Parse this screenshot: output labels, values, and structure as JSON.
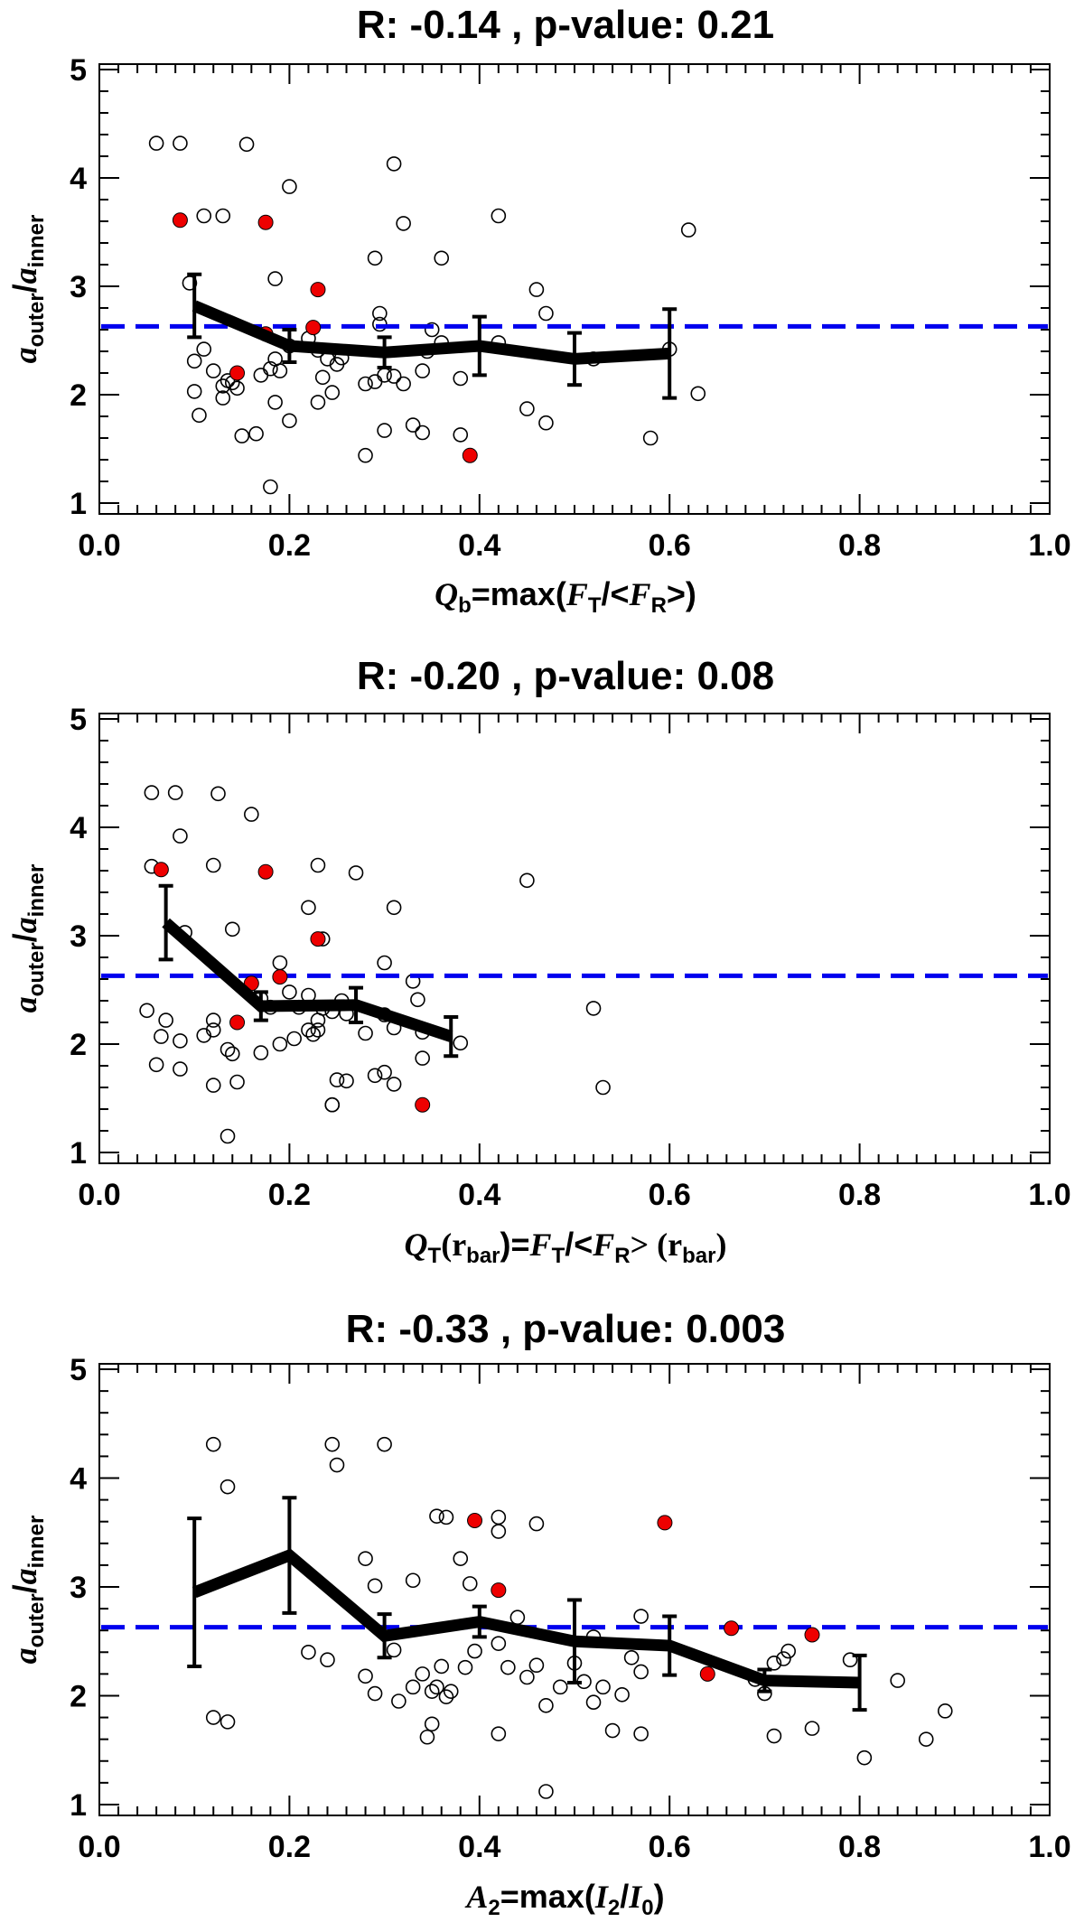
{
  "chart_data": [
    {
      "type": "scatter",
      "title": "R: -0.14 , p-value: 0.21",
      "xlabel": {
        "var": "Q",
        "sub": "b",
        "expr": "=max(",
        "num": "F",
        "num_sub": "T",
        "sep": "/<",
        "den": "F",
        "den_sub": "R",
        "close": ">)"
      },
      "ylabel": {
        "num": "a",
        "num_sub": "outer",
        "sep": "/",
        "den": "a",
        "den_sub": "inner"
      },
      "xlim": [
        0.0,
        1.0
      ],
      "ylim": [
        0.9,
        5.05
      ],
      "xticks": [
        "0.0",
        "0.2",
        "0.4",
        "0.6",
        "0.8",
        "1.0"
      ],
      "yticks": [
        "1",
        "2",
        "3",
        "4",
        "5"
      ],
      "reference_line": {
        "y": 2.63,
        "color": "#0000ee",
        "style": "dashed"
      },
      "colors": {
        "highlight": "#ee0000",
        "open": "#000000",
        "trend": "#000000"
      },
      "open_points": [
        [
          0.06,
          4.32
        ],
        [
          0.085,
          4.32
        ],
        [
          0.095,
          3.03
        ],
        [
          0.11,
          3.65
        ],
        [
          0.13,
          3.65
        ],
        [
          0.155,
          4.31
        ],
        [
          0.2,
          3.92
        ],
        [
          0.185,
          3.07
        ],
        [
          0.31,
          4.13
        ],
        [
          0.32,
          3.58
        ],
        [
          0.29,
          3.26
        ],
        [
          0.36,
          3.26
        ],
        [
          0.42,
          3.65
        ],
        [
          0.46,
          2.97
        ],
        [
          0.47,
          2.75
        ],
        [
          0.62,
          3.52
        ],
        [
          0.1,
          2.31
        ],
        [
          0.11,
          2.42
        ],
        [
          0.12,
          2.22
        ],
        [
          0.13,
          2.08
        ],
        [
          0.135,
          2.13
        ],
        [
          0.14,
          2.11
        ],
        [
          0.145,
          2.06
        ],
        [
          0.1,
          2.03
        ],
        [
          0.13,
          1.97
        ],
        [
          0.105,
          1.81
        ],
        [
          0.15,
          1.62
        ],
        [
          0.165,
          1.64
        ],
        [
          0.18,
          2.24
        ],
        [
          0.185,
          2.33
        ],
        [
          0.19,
          2.22
        ],
        [
          0.2,
          2.45
        ],
        [
          0.22,
          2.52
        ],
        [
          0.23,
          2.41
        ],
        [
          0.24,
          2.33
        ],
        [
          0.25,
          2.28
        ],
        [
          0.255,
          2.34
        ],
        [
          0.235,
          2.16
        ],
        [
          0.23,
          1.93
        ],
        [
          0.245,
          2.02
        ],
        [
          0.2,
          1.76
        ],
        [
          0.185,
          1.93
        ],
        [
          0.17,
          2.18
        ],
        [
          0.18,
          1.15
        ],
        [
          0.28,
          2.1
        ],
        [
          0.29,
          2.12
        ],
        [
          0.3,
          2.18
        ],
        [
          0.31,
          2.17
        ],
        [
          0.32,
          2.1
        ],
        [
          0.295,
          2.65
        ],
        [
          0.295,
          2.75
        ],
        [
          0.34,
          2.22
        ],
        [
          0.345,
          2.4
        ],
        [
          0.35,
          2.6
        ],
        [
          0.36,
          2.48
        ],
        [
          0.3,
          1.67
        ],
        [
          0.33,
          1.72
        ],
        [
          0.34,
          1.65
        ],
        [
          0.28,
          1.44
        ],
        [
          0.38,
          2.15
        ],
        [
          0.38,
          1.63
        ],
        [
          0.42,
          2.48
        ],
        [
          0.45,
          1.87
        ],
        [
          0.47,
          1.74
        ],
        [
          0.52,
          2.33
        ],
        [
          0.58,
          1.6
        ],
        [
          0.6,
          2.42
        ],
        [
          0.63,
          2.01
        ]
      ],
      "highlight_points": [
        [
          0.085,
          3.61
        ],
        [
          0.175,
          3.59
        ],
        [
          0.23,
          2.97
        ],
        [
          0.225,
          2.62
        ],
        [
          0.175,
          2.56
        ],
        [
          0.145,
          2.2
        ],
        [
          0.39,
          1.44
        ]
      ],
      "trend": {
        "x": [
          0.1,
          0.2,
          0.3,
          0.4,
          0.5,
          0.6
        ],
        "y": [
          2.82,
          2.45,
          2.39,
          2.45,
          2.33,
          2.38
        ],
        "err": [
          0.29,
          0.15,
          0.14,
          0.27,
          0.24,
          0.41
        ]
      }
    },
    {
      "type": "scatter",
      "title": "R: -0.20 , p-value: 0.08",
      "xlabel": {
        "var": "Q",
        "sub": "T",
        "arg": "(r",
        "arg_sub": "bar",
        "expr": ")=",
        "num": "F",
        "num_sub": "T",
        "sep": "/<",
        "den": "F",
        "den_sub": "R",
        "close": "> (r",
        "close_sub": "bar",
        "end": ")"
      },
      "ylabel": {
        "num": "a",
        "num_sub": "outer",
        "sep": "/",
        "den": "a",
        "den_sub": "inner"
      },
      "xlim": [
        0.0,
        1.0
      ],
      "ylim": [
        0.9,
        5.05
      ],
      "xticks": [
        "0.0",
        "0.2",
        "0.4",
        "0.6",
        "0.8",
        "1.0"
      ],
      "yticks": [
        "1",
        "2",
        "3",
        "4",
        "5"
      ],
      "reference_line": {
        "y": 2.63,
        "color": "#0000ee",
        "style": "dashed"
      },
      "colors": {
        "highlight": "#ee0000",
        "open": "#000000",
        "trend": "#000000"
      },
      "open_points": [
        [
          0.055,
          4.32
        ],
        [
          0.08,
          4.32
        ],
        [
          0.125,
          4.31
        ],
        [
          0.16,
          4.12
        ],
        [
          0.085,
          3.92
        ],
        [
          0.055,
          3.64
        ],
        [
          0.12,
          3.65
        ],
        [
          0.23,
          3.65
        ],
        [
          0.27,
          3.58
        ],
        [
          0.31,
          3.26
        ],
        [
          0.22,
          3.26
        ],
        [
          0.14,
          3.06
        ],
        [
          0.09,
          3.03
        ],
        [
          0.235,
          2.97
        ],
        [
          0.3,
          2.75
        ],
        [
          0.19,
          2.75
        ],
        [
          0.45,
          3.51
        ],
        [
          0.33,
          2.58
        ],
        [
          0.05,
          2.31
        ],
        [
          0.07,
          2.22
        ],
        [
          0.11,
          2.08
        ],
        [
          0.12,
          2.13
        ],
        [
          0.12,
          2.22
        ],
        [
          0.065,
          2.07
        ],
        [
          0.085,
          2.03
        ],
        [
          0.135,
          1.95
        ],
        [
          0.14,
          1.91
        ],
        [
          0.06,
          1.81
        ],
        [
          0.085,
          1.77
        ],
        [
          0.12,
          1.62
        ],
        [
          0.145,
          1.65
        ],
        [
          0.135,
          1.15
        ],
        [
          0.17,
          2.42
        ],
        [
          0.18,
          2.34
        ],
        [
          0.2,
          2.48
        ],
        [
          0.21,
          2.34
        ],
        [
          0.22,
          2.45
        ],
        [
          0.23,
          2.22
        ],
        [
          0.235,
          2.33
        ],
        [
          0.245,
          2.3
        ],
        [
          0.255,
          2.4
        ],
        [
          0.225,
          2.09
        ],
        [
          0.22,
          2.13
        ],
        [
          0.205,
          2.05
        ],
        [
          0.19,
          2.0
        ],
        [
          0.17,
          1.92
        ],
        [
          0.23,
          2.13
        ],
        [
          0.26,
          2.28
        ],
        [
          0.28,
          2.1
        ],
        [
          0.3,
          2.27
        ],
        [
          0.31,
          2.15
        ],
        [
          0.25,
          1.67
        ],
        [
          0.26,
          1.66
        ],
        [
          0.3,
          1.74
        ],
        [
          0.31,
          1.63
        ],
        [
          0.29,
          1.71
        ],
        [
          0.245,
          1.44
        ],
        [
          0.34,
          2.11
        ],
        [
          0.34,
          1.87
        ],
        [
          0.38,
          2.01
        ],
        [
          0.335,
          2.41
        ],
        [
          0.52,
          2.33
        ],
        [
          0.53,
          1.6
        ],
        [
          0.245,
          1.44
        ]
      ],
      "highlight_points": [
        [
          0.065,
          3.61
        ],
        [
          0.175,
          3.59
        ],
        [
          0.23,
          2.97
        ],
        [
          0.19,
          2.62
        ],
        [
          0.16,
          2.56
        ],
        [
          0.145,
          2.2
        ],
        [
          0.34,
          1.44
        ]
      ],
      "trend": {
        "x": [
          0.07,
          0.17,
          0.27,
          0.37
        ],
        "y": [
          3.12,
          2.35,
          2.36,
          2.07
        ],
        "err": [
          0.34,
          0.13,
          0.16,
          0.18
        ]
      }
    },
    {
      "type": "scatter",
      "title": "R: -0.33 , p-value: 0.003",
      "xlabel": {
        "var": "A",
        "sub": "2",
        "expr": "=max(",
        "num": "I",
        "num_sub": "2",
        "sep": "/",
        "den": "I",
        "den_sub": "0",
        "close": ")"
      },
      "ylabel": {
        "num": "a",
        "num_sub": "outer",
        "sep": "/",
        "den": "a",
        "den_sub": "inner"
      },
      "xlim": [
        0.0,
        1.0
      ],
      "ylim": [
        0.9,
        5.05
      ],
      "xticks": [
        "0.0",
        "0.2",
        "0.4",
        "0.6",
        "0.8",
        "1.0"
      ],
      "yticks": [
        "1",
        "2",
        "3",
        "4",
        "5"
      ],
      "reference_line": {
        "y": 2.63,
        "color": "#0000ee",
        "style": "dashed"
      },
      "colors": {
        "highlight": "#ee0000",
        "open": "#000000",
        "trend": "#000000"
      },
      "open_points": [
        [
          0.12,
          4.31
        ],
        [
          0.245,
          4.31
        ],
        [
          0.3,
          4.31
        ],
        [
          0.25,
          4.12
        ],
        [
          0.135,
          3.92
        ],
        [
          0.355,
          3.65
        ],
        [
          0.365,
          3.64
        ],
        [
          0.42,
          3.64
        ],
        [
          0.42,
          3.51
        ],
        [
          0.46,
          3.58
        ],
        [
          0.38,
          3.26
        ],
        [
          0.28,
          3.26
        ],
        [
          0.33,
          3.06
        ],
        [
          0.39,
          3.03
        ],
        [
          0.29,
          3.01
        ],
        [
          0.12,
          1.8
        ],
        [
          0.135,
          1.76
        ],
        [
          0.22,
          2.4
        ],
        [
          0.24,
          2.33
        ],
        [
          0.28,
          2.18
        ],
        [
          0.29,
          2.02
        ],
        [
          0.31,
          2.42
        ],
        [
          0.315,
          1.95
        ],
        [
          0.33,
          2.08
        ],
        [
          0.34,
          2.2
        ],
        [
          0.35,
          2.04
        ],
        [
          0.355,
          2.08
        ],
        [
          0.36,
          2.27
        ],
        [
          0.365,
          1.99
        ],
        [
          0.37,
          2.04
        ],
        [
          0.35,
          1.74
        ],
        [
          0.345,
          1.62
        ],
        [
          0.385,
          2.26
        ],
        [
          0.395,
          2.41
        ],
        [
          0.42,
          2.48
        ],
        [
          0.43,
          2.26
        ],
        [
          0.44,
          2.72
        ],
        [
          0.45,
          2.17
        ],
        [
          0.42,
          1.65
        ],
        [
          0.46,
          2.28
        ],
        [
          0.47,
          1.91
        ],
        [
          0.485,
          2.08
        ],
        [
          0.5,
          2.3
        ],
        [
          0.51,
          2.13
        ],
        [
          0.52,
          2.54
        ],
        [
          0.52,
          1.94
        ],
        [
          0.53,
          2.08
        ],
        [
          0.55,
          2.01
        ],
        [
          0.56,
          2.35
        ],
        [
          0.57,
          2.22
        ],
        [
          0.57,
          2.73
        ],
        [
          0.54,
          1.68
        ],
        [
          0.57,
          1.65
        ],
        [
          0.47,
          1.12
        ],
        [
          0.69,
          2.15
        ],
        [
          0.7,
          2.02
        ],
        [
          0.71,
          2.3
        ],
        [
          0.72,
          2.34
        ],
        [
          0.725,
          2.41
        ],
        [
          0.75,
          1.7
        ],
        [
          0.71,
          1.63
        ],
        [
          0.79,
          2.33
        ],
        [
          0.84,
          2.14
        ],
        [
          0.87,
          1.6
        ],
        [
          0.89,
          1.86
        ],
        [
          0.805,
          1.43
        ]
      ],
      "highlight_points": [
        [
          0.395,
          3.61
        ],
        [
          0.595,
          3.59
        ],
        [
          0.42,
          2.97
        ],
        [
          0.665,
          2.62
        ],
        [
          0.75,
          2.56
        ],
        [
          0.64,
          2.2
        ]
      ],
      "trend": {
        "x": [
          0.1,
          0.2,
          0.3,
          0.4,
          0.5,
          0.6,
          0.7,
          0.8
        ],
        "y": [
          2.95,
          3.29,
          2.55,
          2.68,
          2.5,
          2.46,
          2.14,
          2.12
        ],
        "err": [
          0.68,
          0.53,
          0.2,
          0.14,
          0.38,
          0.27,
          0.1,
          0.25
        ]
      }
    }
  ]
}
